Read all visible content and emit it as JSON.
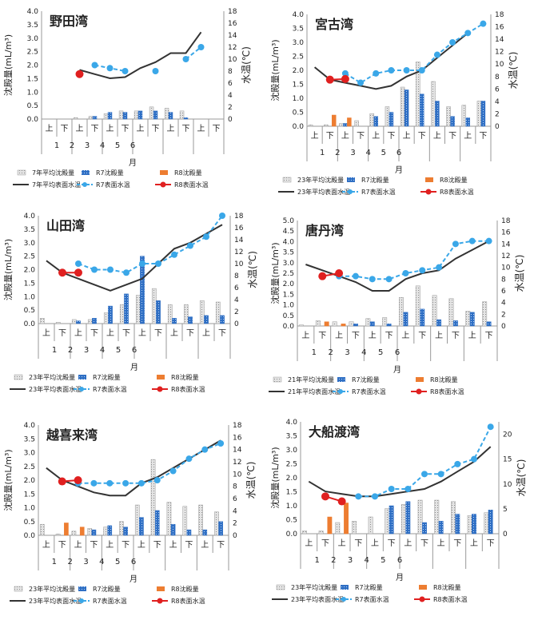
{
  "labels": {
    "half_first": "上",
    "half_second": "下",
    "month_label": "月",
    "y_left": "沈殿量(mL/m³)",
    "y_right": "水温(℃)"
  },
  "colors": {
    "avg_bar": "#bdbdbd",
    "r7_bar": "#2f6fc4",
    "r8_bar": "#ed7d31",
    "avg_line": "#333333",
    "r7_line": "#3aa7e8",
    "r8_line": "#e02020"
  },
  "chart_data": [
    {
      "type": "bar",
      "title": "野田湾",
      "months": [
        "1",
        "2",
        "3",
        "4",
        "5",
        "6"
      ],
      "ylim": [
        0,
        4.0
      ],
      "y2lim": [
        0,
        18
      ],
      "legend": [
        "7年平均沈殿量",
        "R7沈殿量",
        "R8沈殿量",
        "7年平均表面水温",
        "R7表面水温",
        "R8表面水温"
      ],
      "series": [
        {
          "name": "7年平均沈殿量",
          "kind": "bar",
          "values": [
            0,
            0,
            0.05,
            0.1,
            0.2,
            0.3,
            0.3,
            0.45,
            0.4,
            0.3,
            0,
            0
          ]
        },
        {
          "name": "R7沈殿量",
          "kind": "bar",
          "values": [
            0,
            0,
            0,
            0.1,
            0.25,
            0.25,
            0.3,
            0.3,
            0.25,
            0.05,
            0,
            0
          ]
        },
        {
          "name": "R8沈殿量",
          "kind": "bar",
          "values": [
            0,
            0,
            0,
            0,
            0,
            0,
            0,
            0,
            0,
            0,
            0,
            0
          ]
        },
        {
          "name": "7年平均表面水温",
          "kind": "line",
          "values": [
            null,
            null,
            8.2,
            7.5,
            6.8,
            7.0,
            8.5,
            9.5,
            11.0,
            11.0,
            14.5,
            null
          ]
        },
        {
          "name": "R7表面水温",
          "kind": "line",
          "values": [
            null,
            null,
            null,
            9.0,
            8.5,
            8.0,
            null,
            8.0,
            null,
            10.0,
            12.0,
            null
          ]
        },
        {
          "name": "R8表面水温",
          "kind": "line",
          "values": [
            null,
            null,
            7.5,
            null,
            null,
            null,
            null,
            null,
            null,
            null,
            null,
            null
          ]
        }
      ]
    },
    {
      "type": "bar",
      "title": "宮古湾",
      "months": [
        "1",
        "2",
        "3",
        "4",
        "5",
        "6"
      ],
      "ylim": [
        0,
        4.0
      ],
      "y2lim": [
        0,
        18
      ],
      "legend": [
        "23年平均沈殿量",
        "R7沈殿量",
        "R8沈殿量",
        "23年平均表面水温",
        "R7表面水温",
        "R8表面水温"
      ],
      "series": [
        {
          "name": "23年平均沈殿量",
          "kind": "bar",
          "values": [
            0.05,
            0.05,
            0.1,
            0.2,
            0.45,
            0.7,
            1.4,
            2.3,
            1.6,
            0.7,
            0.75,
            0.9
          ]
        },
        {
          "name": "R7沈殿量",
          "kind": "bar",
          "values": [
            0,
            0,
            0.1,
            0,
            0.35,
            0.5,
            1.3,
            1.15,
            0.9,
            0.35,
            0.3,
            0.9
          ]
        },
        {
          "name": "R8沈殿量",
          "kind": "bar",
          "values": [
            0,
            0.4,
            0.3,
            0,
            0,
            0,
            0,
            0,
            0,
            0,
            0,
            0
          ]
        },
        {
          "name": "23年平均表面水温",
          "kind": "line",
          "values": [
            9.5,
            7.5,
            7.0,
            6.5,
            6.0,
            6.5,
            8.0,
            9.0,
            11.0,
            13.0,
            15.0,
            null
          ]
        },
        {
          "name": "R7表面水温",
          "kind": "line",
          "values": [
            null,
            null,
            8.5,
            7.0,
            8.5,
            9.0,
            9.0,
            9.0,
            11.5,
            13.5,
            15.0,
            16.5
          ]
        },
        {
          "name": "R8表面水温",
          "kind": "line",
          "values": [
            null,
            7.5,
            7.6,
            null,
            null,
            null,
            null,
            null,
            null,
            null,
            null,
            null
          ]
        }
      ]
    },
    {
      "type": "bar",
      "title": "山田湾",
      "months": [
        "1",
        "2",
        "3",
        "4",
        "5",
        "6"
      ],
      "ylim": [
        0,
        4.0
      ],
      "y2lim": [
        0,
        18
      ],
      "legend": [
        "23年平均沈殿量",
        "R7沈殿量",
        "R8沈殿量",
        "23年平均表面水温",
        "R7表面水温",
        "R8表面水温"
      ],
      "series": [
        {
          "name": "23年平均沈殿量",
          "kind": "bar",
          "values": [
            0.2,
            0.05,
            0.15,
            0.15,
            0.4,
            0.7,
            1.05,
            1.3,
            0.7,
            0.7,
            0.85,
            0.8
          ]
        },
        {
          "name": "R7沈殿量",
          "kind": "bar",
          "values": [
            0,
            0,
            0.1,
            0.2,
            0.65,
            1.1,
            2.5,
            0.85,
            0.2,
            0.25,
            0.3,
            0.3
          ]
        },
        {
          "name": "R8沈殿量",
          "kind": "bar",
          "values": [
            0,
            0,
            0,
            0,
            0,
            0,
            0,
            0,
            0,
            0,
            0,
            0
          ]
        },
        {
          "name": "23年平均表面水温",
          "kind": "line",
          "values": [
            10.5,
            8.5,
            7.5,
            6.5,
            5.5,
            6.5,
            7.5,
            10.0,
            12.5,
            13.5,
            15.0,
            16.5
          ]
        },
        {
          "name": "R7表面水温",
          "kind": "line",
          "values": [
            null,
            null,
            10.0,
            9.0,
            9.0,
            8.5,
            10.0,
            10.0,
            11.5,
            13.0,
            14.5,
            18.0
          ]
        },
        {
          "name": "R8表面水温",
          "kind": "line",
          "values": [
            null,
            8.5,
            8.5,
            null,
            null,
            null,
            null,
            null,
            null,
            null,
            null,
            null
          ]
        }
      ]
    },
    {
      "type": "bar",
      "title": "唐丹湾",
      "months": [
        "1",
        "2",
        "3",
        "4",
        "5",
        "6"
      ],
      "ylim": [
        0,
        5.0
      ],
      "y2lim": [
        0,
        18
      ],
      "legend": [
        "21年平均沈殿量",
        "R7沈殿量",
        "R8沈殿量",
        "21年平均表面水温",
        "R7表面水温",
        "R8表面水温"
      ],
      "series": [
        {
          "name": "21年平均沈殿量",
          "kind": "bar",
          "values": [
            0.05,
            0.25,
            0.2,
            0.2,
            0.35,
            0.4,
            1.35,
            1.9,
            1.45,
            1.3,
            0.7,
            1.15
          ]
        },
        {
          "name": "R7沈殿量",
          "kind": "bar",
          "values": [
            0,
            0,
            0,
            0.1,
            0.2,
            0.1,
            0.65,
            0.8,
            0.3,
            0.25,
            0.65,
            0.2
          ]
        },
        {
          "name": "R8沈殿量",
          "kind": "bar",
          "values": [
            0,
            0.2,
            0.1,
            0,
            0,
            0,
            0,
            0,
            0,
            0,
            0,
            0
          ]
        },
        {
          "name": "21年平均表面水温",
          "kind": "line",
          "values": [
            10.5,
            9.5,
            8.5,
            7.5,
            6.0,
            6.0,
            8.0,
            9.0,
            9.5,
            11.5,
            13.0,
            14.5
          ]
        },
        {
          "name": "R7表面水温",
          "kind": "line",
          "values": [
            null,
            null,
            8.5,
            8.5,
            8.0,
            8.0,
            9.0,
            9.5,
            10.0,
            14.0,
            14.5,
            14.5
          ]
        },
        {
          "name": "R8表面水温",
          "kind": "line",
          "values": [
            null,
            8.5,
            9.0,
            null,
            null,
            null,
            null,
            null,
            null,
            null,
            null,
            null
          ]
        }
      ]
    },
    {
      "type": "bar",
      "title": "越喜来湾",
      "months": [
        "1",
        "2",
        "3",
        "4",
        "5",
        "6"
      ],
      "ylim": [
        0,
        4.0
      ],
      "y2lim": [
        0,
        18
      ],
      "legend": [
        "23年平均沈殿量",
        "R7沈殿量",
        "R8沈殿量",
        "23年平均表面水温",
        "R7表面水温",
        "R8表面水温"
      ],
      "series": [
        {
          "name": "23年平均沈殿量",
          "kind": "bar",
          "values": [
            0.4,
            0.05,
            0.15,
            0.25,
            0.3,
            0.5,
            1.1,
            2.75,
            1.2,
            1.05,
            1.1,
            0.85
          ]
        },
        {
          "name": "R7沈殿量",
          "kind": "bar",
          "values": [
            0,
            0,
            0,
            0.2,
            0.35,
            0.3,
            0.65,
            0.9,
            0.4,
            0.2,
            0.2,
            0.5
          ]
        },
        {
          "name": "R8沈殿量",
          "kind": "bar",
          "values": [
            0,
            0.45,
            0.3,
            0,
            0,
            0,
            0,
            0,
            0,
            0,
            0,
            0
          ]
        },
        {
          "name": "23年平均表面水温",
          "kind": "line",
          "values": [
            11.0,
            9.0,
            8.0,
            7.0,
            6.5,
            6.5,
            8.5,
            9.5,
            11.0,
            12.5,
            14.0,
            15.5
          ]
        },
        {
          "name": "R7表面水温",
          "kind": "line",
          "values": [
            null,
            null,
            8.5,
            8.5,
            8.5,
            8.5,
            8.5,
            9.0,
            10.5,
            12.5,
            14.0,
            15.0
          ]
        },
        {
          "name": "R8表面水温",
          "kind": "line",
          "values": [
            null,
            8.8,
            9.0,
            null,
            null,
            null,
            null,
            null,
            null,
            null,
            null,
            null
          ]
        }
      ]
    },
    {
      "type": "bar",
      "title": "大船渡湾",
      "months": [
        "1",
        "2",
        "3",
        "4",
        "5",
        "6"
      ],
      "ylim": [
        0,
        4.0
      ],
      "y2lim": [
        0,
        22.5
      ],
      "legend": [
        "23年平均沈殿量",
        "R7沈殿量",
        "R8沈殿量",
        "23年平均表面水温",
        "R7表面水温",
        "R8表面水温"
      ],
      "series": [
        {
          "name": "23年平均沈殿量",
          "kind": "bar",
          "values": [
            0.1,
            0.1,
            0.4,
            0.45,
            0.6,
            0.9,
            1.05,
            1.2,
            1.2,
            1.15,
            0.65,
            0.75
          ]
        },
        {
          "name": "R7沈殿量",
          "kind": "bar",
          "values": [
            0,
            0,
            0,
            0,
            0,
            1.0,
            1.15,
            0.4,
            0.45,
            0.7,
            0.7,
            0.85
          ]
        },
        {
          "name": "R8沈殿量",
          "kind": "bar",
          "values": [
            0,
            0.6,
            1.1,
            0,
            0,
            0,
            0,
            0,
            0,
            0,
            0,
            0
          ]
        },
        {
          "name": "23年平均表面水温",
          "kind": "line",
          "values": [
            10.5,
            8.5,
            8.0,
            7.5,
            7.5,
            8.0,
            8.5,
            9.0,
            10.5,
            12.5,
            14.5,
            17.5
          ]
        },
        {
          "name": "R7表面水温",
          "kind": "line",
          "values": [
            null,
            null,
            null,
            7.5,
            7.5,
            9.0,
            9.0,
            12.0,
            12.0,
            14.0,
            15.0,
            21.5
          ]
        },
        {
          "name": "R8表面水温",
          "kind": "line",
          "values": [
            null,
            7.5,
            6.5,
            null,
            null,
            null,
            null,
            null,
            null,
            null,
            null,
            null
          ]
        }
      ]
    }
  ]
}
